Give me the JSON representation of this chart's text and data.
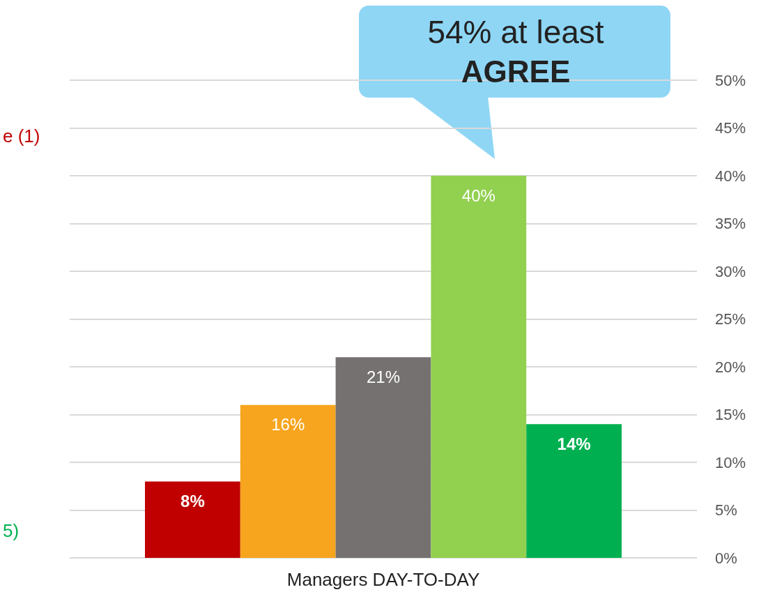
{
  "chart_data": {
    "type": "bar",
    "categories": [
      "Managers DAY-TO-DAY"
    ],
    "series": [
      {
        "color": "#c00000",
        "values": [
          8
        ],
        "value_labels": [
          "8%"
        ]
      },
      {
        "color": "#f7a51e",
        "values": [
          16
        ],
        "value_labels": [
          "16%"
        ]
      },
      {
        "color": "#767171",
        "values": [
          21
        ],
        "value_labels": [
          "21%"
        ]
      },
      {
        "color": "#92d050",
        "values": [
          40
        ],
        "value_labels": [
          "40%"
        ]
      },
      {
        "color": "#00b050",
        "values": [
          14
        ],
        "value_labels": [
          "14%"
        ]
      }
    ],
    "ylim": [
      0,
      50
    ],
    "yticks": [
      {
        "value": 0,
        "label": "0%"
      },
      {
        "value": 5,
        "label": "5%"
      },
      {
        "value": 10,
        "label": "10%"
      },
      {
        "value": 15,
        "label": "15%"
      },
      {
        "value": 20,
        "label": "20%"
      },
      {
        "value": 25,
        "label": "25%"
      },
      {
        "value": 30,
        "label": "30%"
      },
      {
        "value": 35,
        "label": "35%"
      },
      {
        "value": 40,
        "label": "40%"
      },
      {
        "value": 45,
        "label": "45%"
      },
      {
        "value": 50,
        "label": "50%"
      }
    ],
    "grid": "y",
    "annotations": [
      "54% at least AGREE",
      "e (1)",
      "5)"
    ]
  }
}
